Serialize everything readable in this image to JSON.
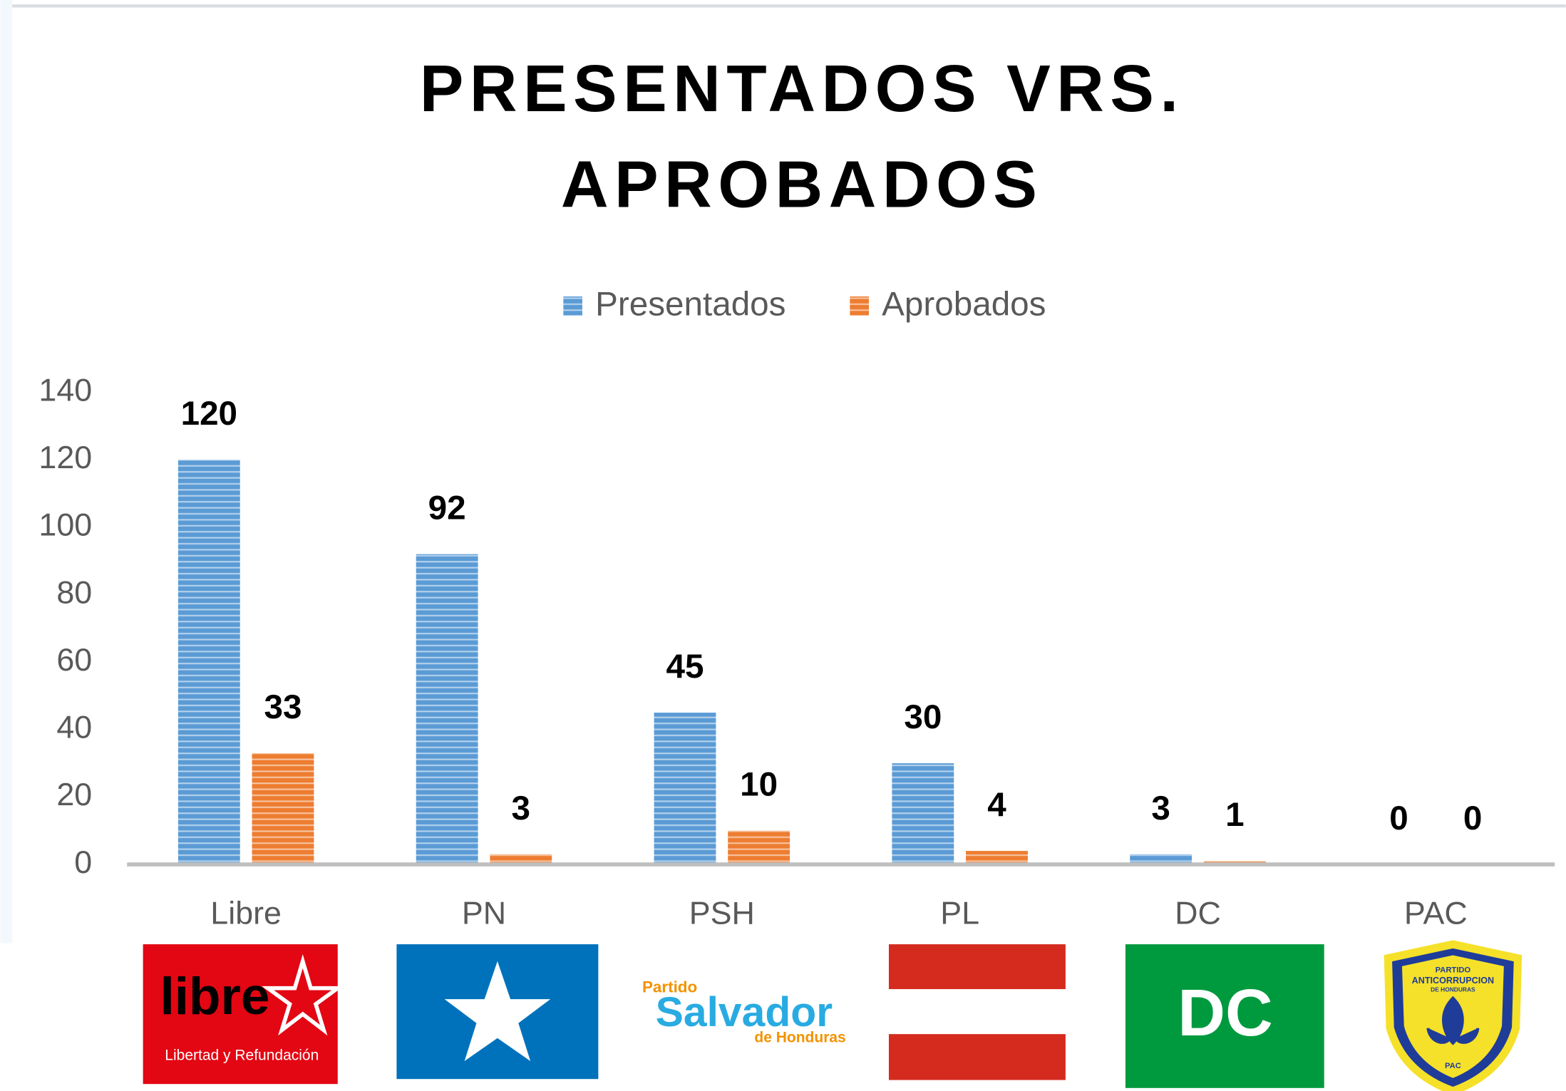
{
  "chart_data": {
    "type": "bar",
    "title": [
      "PRESENTADOS VRS.",
      "APROBADOS"
    ],
    "categories": [
      "Libre",
      "PN",
      "PSH",
      "PL",
      "DC",
      "PAC"
    ],
    "series": [
      {
        "name": "Presentados",
        "color": "#5b9bd5",
        "values": [
          120,
          92,
          45,
          30,
          3,
          0
        ]
      },
      {
        "name": "Aprobados",
        "color": "#ed7d31",
        "values": [
          33,
          3,
          10,
          4,
          1,
          0
        ]
      }
    ],
    "ylim": [
      0,
      140
    ],
    "yticks": [
      0,
      20,
      40,
      60,
      80,
      100,
      120,
      140
    ],
    "grid": false,
    "legend": "top",
    "logo_texts": {
      "Libre": [
        "libre",
        "Libertad y Refundación"
      ],
      "PSH": [
        "Partido",
        "Salvador",
        "de Honduras"
      ],
      "DC": [
        "DC"
      ],
      "PAC": [
        "PARTIDO",
        "ANTICORRUPCION",
        "DE HONDURAS",
        "PAC"
      ]
    }
  }
}
